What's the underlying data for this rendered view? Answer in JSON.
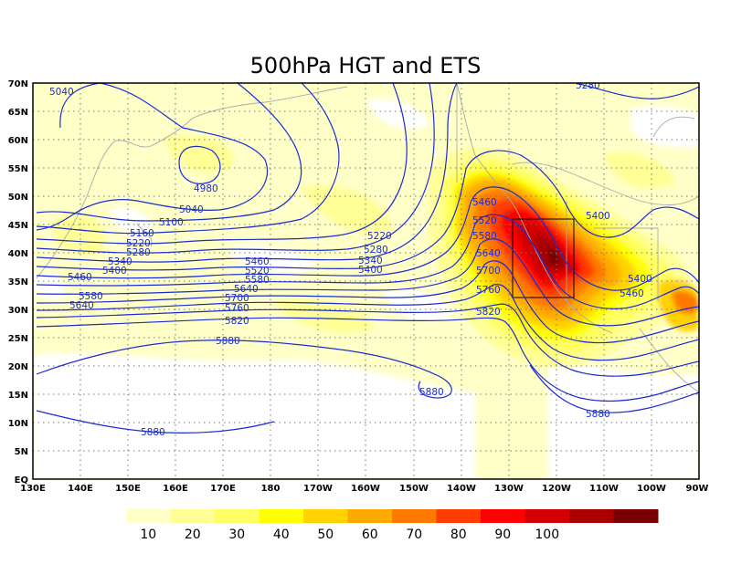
{
  "title": "500hPa HGT and ETS",
  "axes": {
    "lat_labels": [
      "70N",
      "65N",
      "60N",
      "55N",
      "50N",
      "45N",
      "40N",
      "35N",
      "30N",
      "25N",
      "20N",
      "15N",
      "10N",
      "5N",
      "EQ"
    ],
    "lon_labels": [
      "130E",
      "140E",
      "150E",
      "160E",
      "170E",
      "180",
      "170W",
      "160W",
      "150W",
      "140W",
      "130W",
      "120W",
      "110W",
      "100W",
      "90W"
    ]
  },
  "contours": [
    {
      "value": "5040",
      "label": "5040"
    },
    {
      "value": "4980",
      "label": "4980"
    },
    {
      "value": "5100",
      "label": "5100"
    },
    {
      "value": "5160",
      "label": "5160"
    },
    {
      "value": "5220",
      "label": "5220"
    },
    {
      "value": "5280",
      "label": "5280"
    },
    {
      "value": "5340",
      "label": "5340"
    },
    {
      "value": "5400",
      "label": "5400"
    },
    {
      "value": "5460",
      "label": "5460"
    },
    {
      "value": "5520",
      "label": "5520"
    },
    {
      "value": "5580",
      "label": "5580"
    },
    {
      "value": "5640",
      "label": "5640"
    },
    {
      "value": "5700",
      "label": "5700"
    },
    {
      "value": "5760",
      "label": "5760"
    },
    {
      "value": "5820",
      "label": "5820"
    },
    {
      "value": "5880",
      "label": "5880"
    }
  ],
  "colorbar": {
    "labels": [
      "10",
      "20",
      "30",
      "40",
      "50",
      "60",
      "70",
      "80",
      "90",
      "100"
    ],
    "colors": [
      "#ffffc8",
      "#ffff96",
      "#ffff64",
      "#ffff00",
      "#ffd200",
      "#ffaa00",
      "#ff7800",
      "#ff3c00",
      "#ff0000",
      "#d20000",
      "#aa0000",
      "#780000"
    ]
  }
}
